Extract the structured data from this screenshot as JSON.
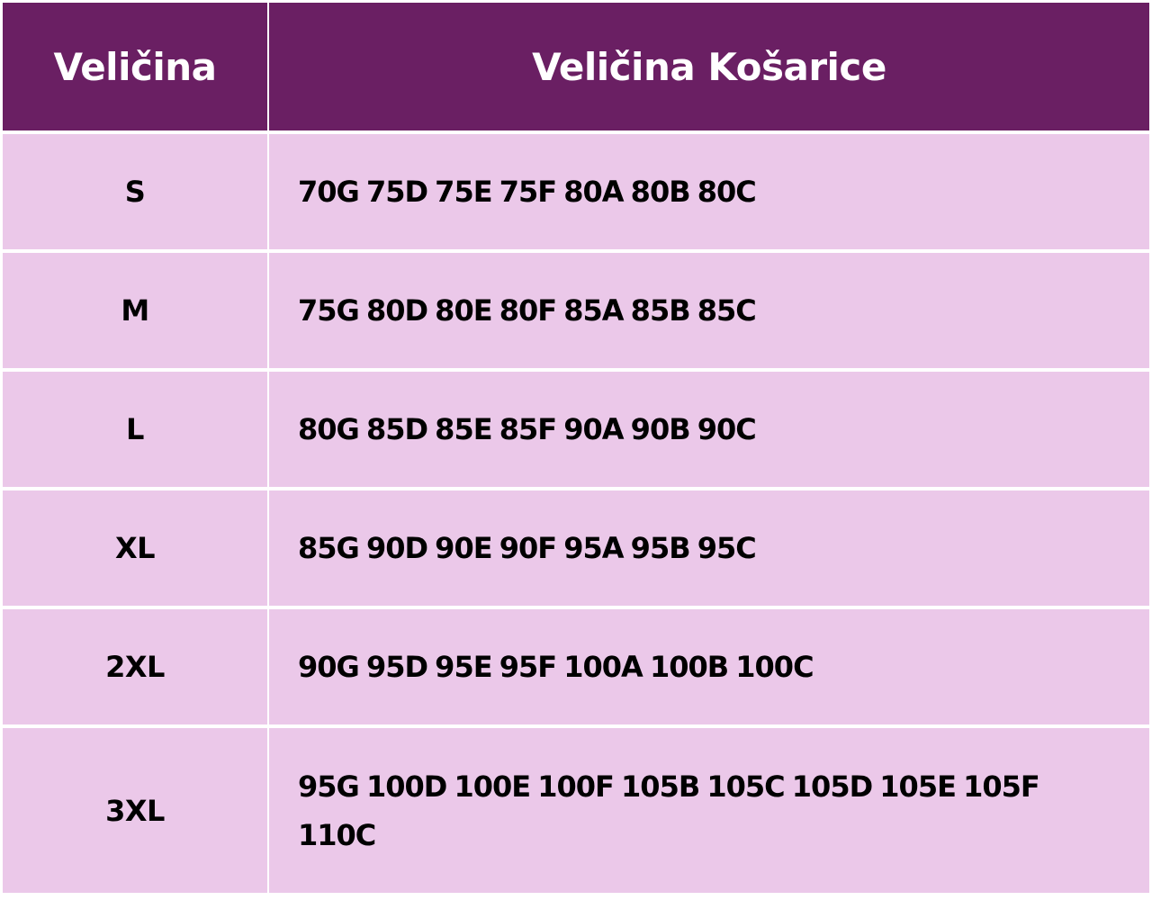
{
  "colors": {
    "header_bg": "#6a1f63",
    "cell_bg": "#ebc8e9",
    "header_text": "#ffffff"
  },
  "table": {
    "headers": [
      "Veličina",
      "Veličina Košarice"
    ],
    "rows": [
      {
        "size": "S",
        "cups": "70G 75D 75E 75F 80A 80B 80C"
      },
      {
        "size": "M",
        "cups": "75G 80D 80E 80F 85A 85B 85C"
      },
      {
        "size": "L",
        "cups": "80G 85D 85E 85F 90A 90B 90C"
      },
      {
        "size": "XL",
        "cups": "85G 90D 90E 90F 95A 95B 95C"
      },
      {
        "size": "2XL",
        "cups": "90G 95D 95E 95F 100A 100B 100C"
      },
      {
        "size": "3XL",
        "cups": "95G 100D 100E 100F 105B 105C 105D 105E 105F 110C"
      }
    ]
  }
}
